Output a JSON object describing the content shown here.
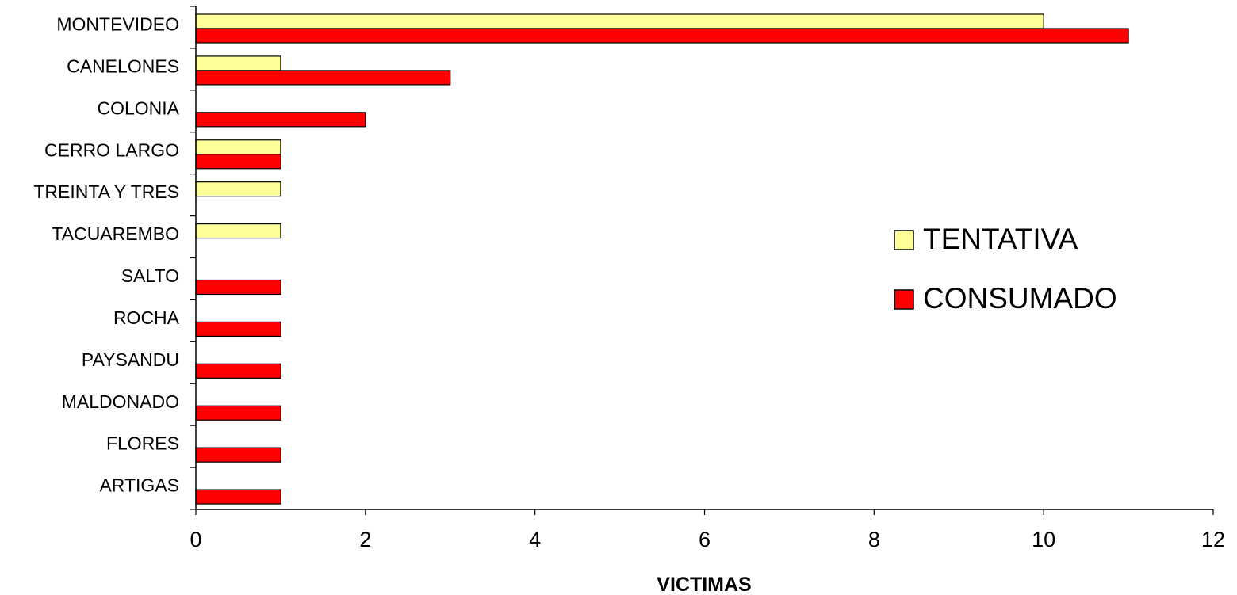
{
  "chart_data": {
    "type": "bar",
    "orientation": "horizontal",
    "categories": [
      "MONTEVIDEO",
      "CANELONES",
      "COLONIA",
      "CERRO LARGO",
      "TREINTA Y TRES",
      "TACUAREMBO",
      "SALTO",
      "ROCHA",
      "PAYSANDU",
      "MALDONADO",
      "FLORES",
      "ARTIGAS"
    ],
    "series": [
      {
        "name": "TENTATIVA",
        "color": "#FFFF99",
        "values": [
          10,
          1,
          0,
          1,
          1,
          1,
          0,
          0,
          0,
          0,
          0,
          0
        ]
      },
      {
        "name": "CONSUMADO",
        "color": "#FF0000",
        "values": [
          11,
          3,
          2,
          1,
          0,
          0,
          1,
          1,
          1,
          1,
          1,
          1
        ]
      }
    ],
    "xlabel": "VICTIMAS",
    "ylabel": "",
    "xlim": [
      0,
      12
    ],
    "xticks": [
      "0",
      "2",
      "4",
      "6",
      "8",
      "10",
      "12"
    ],
    "grid": false,
    "legend_position": "right"
  }
}
